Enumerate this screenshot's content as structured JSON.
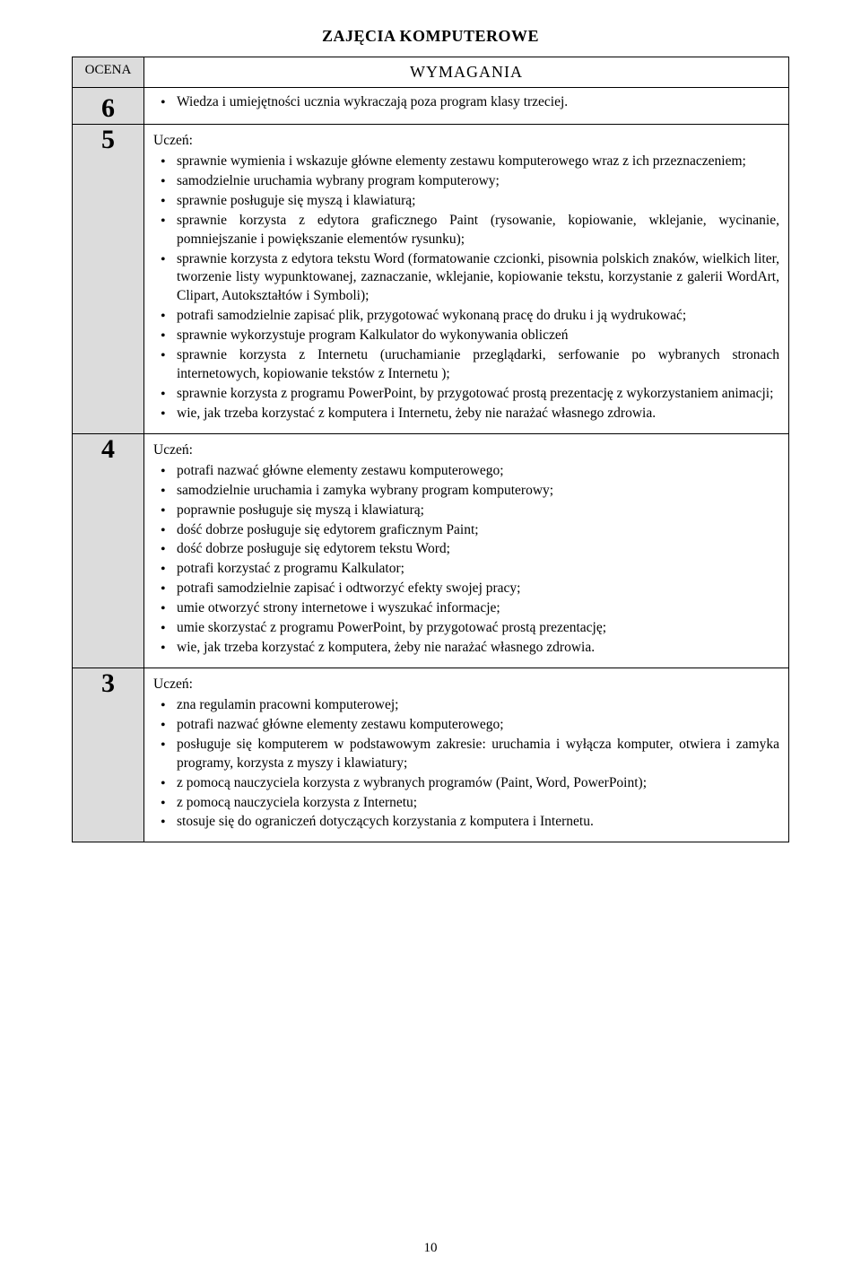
{
  "title": "ZAJĘCIA  KOMPUTEROWE",
  "headers": {
    "ocena": "OCENA",
    "wymagania": "WYMAGANIA"
  },
  "uczen_label": "Uczeń:",
  "page_number": "10",
  "rows": [
    {
      "grade": "6",
      "has_uczen": false,
      "valign": "top",
      "items": [
        "Wiedza i umiejętności ucznia wykraczają poza program klasy trzeciej."
      ]
    },
    {
      "grade": "5",
      "has_uczen": true,
      "valign": "middle",
      "items": [
        "sprawnie wymienia i wskazuje główne elementy zestawu komputerowego wraz z ich przeznaczeniem;",
        "samodzielnie uruchamia wybrany program komputerowy;",
        "sprawnie posługuje się myszą i klawiaturą;",
        "sprawnie korzysta z edytora graficznego Paint (rysowanie, kopiowanie, wklejanie, wycinanie, pomniejszanie i powiększanie elementów rysunku);",
        "sprawnie korzysta z edytora tekstu Word (formatowanie czcionki, pisownia polskich znaków, wielkich liter, tworzenie listy wypunktowanej, zaznaczanie, wklejanie, kopiowanie tekstu, korzystanie z galerii WordArt, Clipart, Autokształtów i Symboli);",
        "potrafi samodzielnie zapisać plik, przygotować wykonaną pracę do druku i ją wydrukować;",
        "sprawnie wykorzystuje program Kalkulator do wykonywania obliczeń",
        "sprawnie korzysta z Internetu (uruchamianie przeglądarki, serfowanie po wybranych stronach internetowych, kopiowanie tekstów z Internetu );",
        "sprawnie korzysta z programu PowerPoint, by przygotować prostą prezentację z wykorzystaniem animacji;",
        "wie, jak trzeba korzystać z komputera i Internetu, żeby nie narażać własnego zdrowia."
      ]
    },
    {
      "grade": "4",
      "has_uczen": true,
      "valign": "middle",
      "items": [
        "potrafi nazwać główne elementy zestawu komputerowego;",
        "samodzielnie uruchamia i zamyka wybrany program komputerowy;",
        "poprawnie posługuje się myszą i klawiaturą;",
        "dość dobrze posługuje się edytorem graficznym Paint;",
        "dość dobrze posługuje się edytorem tekstu Word;",
        "potrafi korzystać z programu Kalkulator;",
        "potrafi  samodzielnie zapisać i odtworzyć efekty swojej pracy;",
        "umie otworzyć strony internetowe i wyszukać informacje;",
        "umie skorzystać z programu PowerPoint, by przygotować prostą prezentację;",
        "wie, jak trzeba korzystać z komputera, żeby nie narażać własnego zdrowia."
      ]
    },
    {
      "grade": "3",
      "has_uczen": true,
      "valign": "middle",
      "items": [
        "zna regulamin pracowni komputerowej;",
        "potrafi nazwać główne elementy zestawu komputerowego;",
        "posługuje się komputerem w podstawowym zakresie: uruchamia i wyłącza komputer, otwiera i zamyka programy, korzysta z myszy i klawiatury;",
        "z pomocą nauczyciela korzysta z  wybranych programów  (Paint, Word, PowerPoint);",
        "z pomocą nauczyciela korzysta z Internetu;",
        "stosuje się do ograniczeń dotyczących korzystania z komputera i Internetu."
      ]
    }
  ]
}
